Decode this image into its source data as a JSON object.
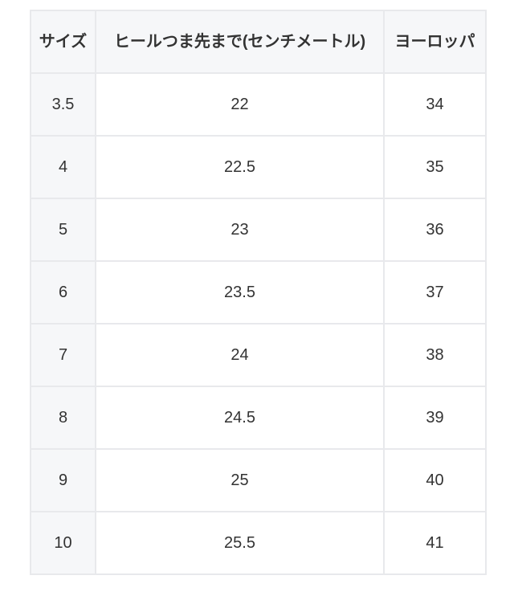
{
  "headers": [
    "サイズ",
    "ヒールつま先まで(センチメートル)",
    "ヨーロッパ"
  ],
  "rows": [
    [
      "3.5",
      "22",
      "34"
    ],
    [
      "4",
      "22.5",
      "35"
    ],
    [
      "5",
      "23",
      "36"
    ],
    [
      "6",
      "23.5",
      "37"
    ],
    [
      "7",
      "24",
      "38"
    ],
    [
      "8",
      "24.5",
      "39"
    ],
    [
      "9",
      "25",
      "40"
    ],
    [
      "10",
      "25.5",
      "41"
    ]
  ]
}
